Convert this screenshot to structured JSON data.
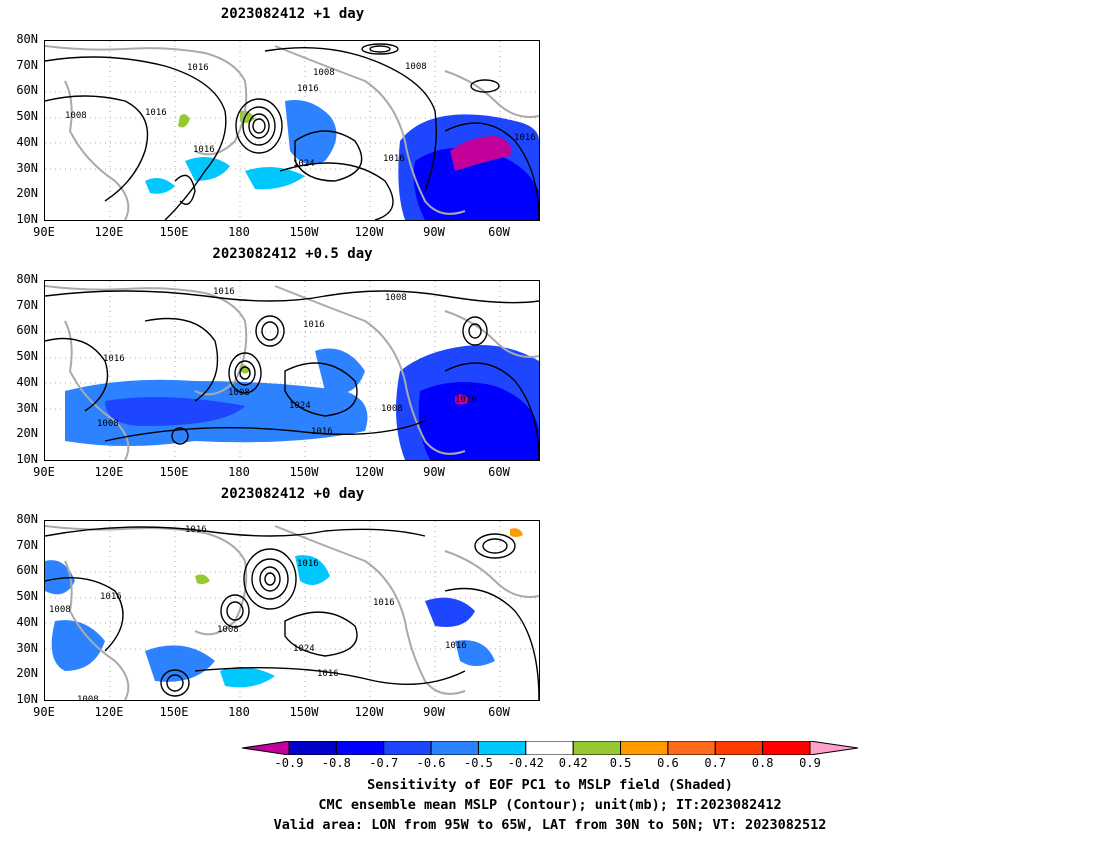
{
  "panels": [
    {
      "title": "2023082412 +1 day"
    },
    {
      "title": "2023082412 +0.5 day"
    },
    {
      "title": "2023082412 +0 day"
    }
  ],
  "lat_ticks": [
    "80N",
    "70N",
    "60N",
    "50N",
    "40N",
    "30N",
    "20N",
    "10N"
  ],
  "lon_ticks": [
    "90E",
    "120E",
    "150E",
    "180",
    "150W",
    "120W",
    "90W",
    "60W"
  ],
  "contour_labels": {
    "panel1": [
      "1016",
      "1008",
      "1008",
      "1016",
      "1008",
      "1016",
      "1016",
      "1024",
      "1016",
      "1016"
    ],
    "panel2": [
      "1016",
      "1008",
      "1016",
      "1016",
      "1008",
      "1024",
      "1016",
      "1008",
      "1016",
      "1008"
    ],
    "panel3": [
      "1016",
      "1016",
      "1016",
      "1008",
      "1016",
      "1008",
      "1024",
      "1016",
      "1016",
      "1008"
    ]
  },
  "colorbar": {
    "labels": [
      "-0.9",
      "-0.8",
      "-0.7",
      "-0.6",
      "-0.5",
      "-0.42",
      "0.42",
      "0.5",
      "0.6",
      "0.7",
      "0.8",
      "0.9"
    ],
    "colors": {
      "low_arrow": "#c2009a",
      "bins": [
        "#0000c8",
        "#0000ff",
        "#1e46ff",
        "#2c82ff",
        "#00c8ff",
        "#ffffff",
        "#96c832",
        "#ff9a00",
        "#ff6a1a",
        "#ff3c00",
        "#ff0000"
      ],
      "high_arrow": "#ffa0c8"
    }
  },
  "captions": [
    "Sensitivity of EOF PC1 to MSLP field (Shaded)",
    "CMC ensemble mean MSLP (Contour); unit(mb); IT:2023082412",
    "Valid area: LON from 95W to 65W, LAT from 30N to 50N; VT: 2023082512"
  ]
}
